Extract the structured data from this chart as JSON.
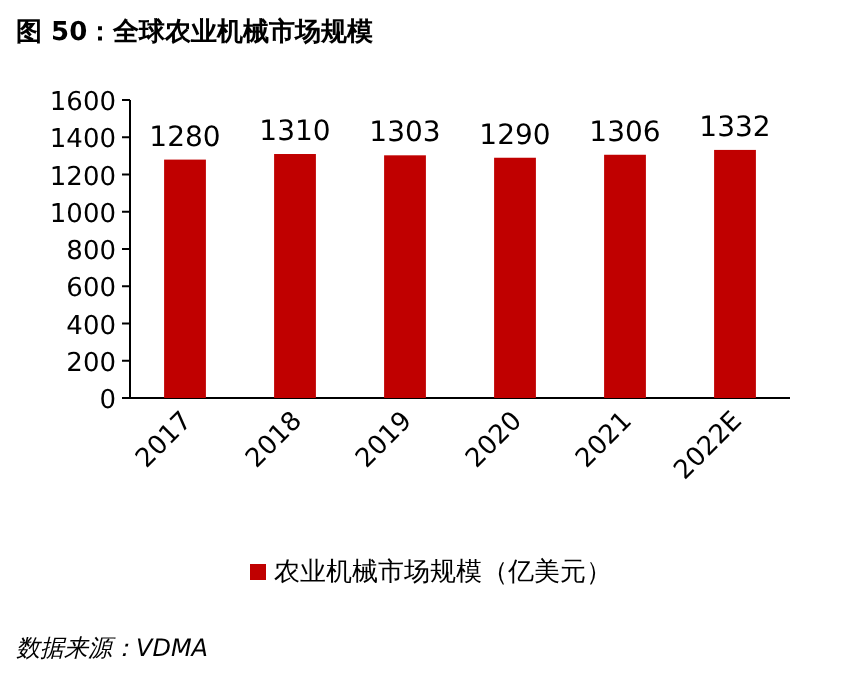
{
  "chart_data": {
    "type": "bar",
    "title": "图 50：全球农业机械市场规模",
    "categories": [
      "2017",
      "2018",
      "2019",
      "2020",
      "2021",
      "2022E"
    ],
    "series": [
      {
        "name": "农业机械市场规模（亿美元）",
        "color": "#c00000",
        "values": [
          1280,
          1310,
          1303,
          1290,
          1306,
          1332
        ]
      }
    ],
    "ylim": [
      0,
      1600
    ],
    "yticks": [
      0,
      200,
      400,
      600,
      800,
      1000,
      1200,
      1400,
      1600
    ],
    "data_labels": true,
    "grid": false,
    "legend": "bottom",
    "annotations": [
      "数据来源：VDMA"
    ]
  }
}
